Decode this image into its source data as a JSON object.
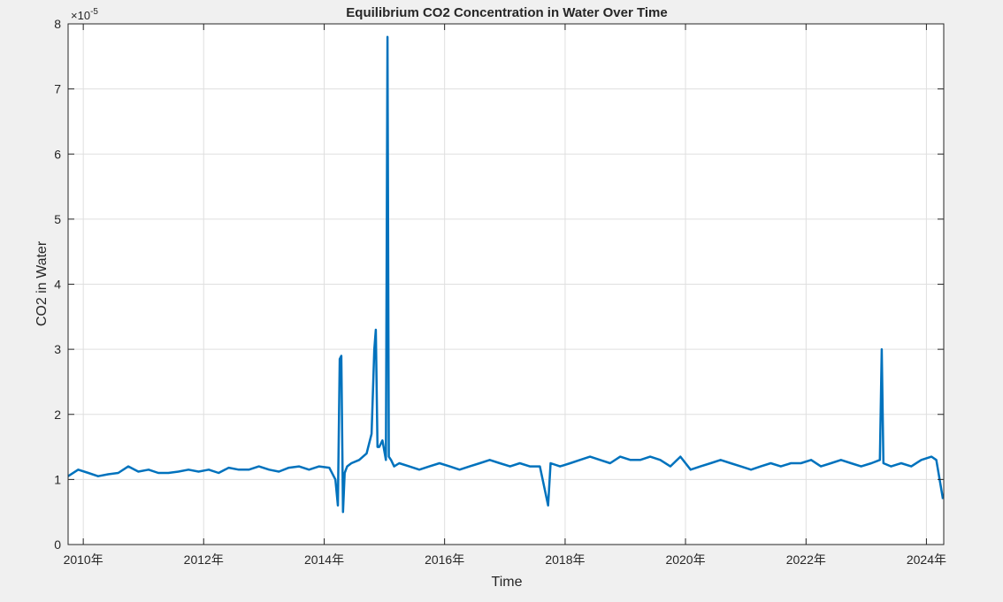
{
  "figure": {
    "background": "#f0f0f0"
  },
  "chart_data": {
    "type": "line",
    "title": "Equilibrium CO2 Concentration in Water Over Time",
    "xlabel": "Time",
    "ylabel": "CO2 in Water",
    "exponent_base": "×10",
    "exponent_power": "-5",
    "grid": true,
    "legend": "none",
    "line_color": "#0072BD",
    "xlim": [
      "2009-10-01",
      "2024-04-15"
    ],
    "ylim": [
      0,
      8
    ],
    "xtick_labels": [
      "2010年",
      "2012年",
      "2014年",
      "2016年",
      "2018年",
      "2020年",
      "2022年",
      "2024年"
    ],
    "xtick_dates": [
      "2010-01-01",
      "2012-01-01",
      "2014-01-01",
      "2016-01-01",
      "2018-01-01",
      "2020-01-01",
      "2022-01-01",
      "2024-01-01"
    ],
    "ytick_labels": [
      "0",
      "1",
      "2",
      "3",
      "4",
      "5",
      "6",
      "7",
      "8"
    ],
    "ytick_values": [
      0,
      1,
      2,
      3,
      4,
      5,
      6,
      7,
      8
    ],
    "series": [
      {
        "x": [
          "2009-10-01",
          "2009-12-01",
          "2010-02-01",
          "2010-04-01",
          "2010-06-01",
          "2010-08-01",
          "2010-10-01",
          "2010-12-01",
          "2011-02-01",
          "2011-04-01",
          "2011-06-01",
          "2011-08-01",
          "2011-10-01",
          "2011-12-01",
          "2012-02-01",
          "2012-04-01",
          "2012-06-01",
          "2012-08-01",
          "2012-10-01",
          "2012-12-01",
          "2013-02-01",
          "2013-04-01",
          "2013-06-01",
          "2013-08-01",
          "2013-10-01",
          "2013-12-01",
          "2014-02-01",
          "2014-03-10",
          "2014-03-25",
          "2014-04-05",
          "2014-04-15",
          "2014-04-25",
          "2014-05-05",
          "2014-05-20",
          "2014-06-15",
          "2014-08-01",
          "2014-09-15",
          "2014-10-15",
          "2014-11-01",
          "2014-11-10",
          "2014-11-20",
          "2014-12-01",
          "2014-12-20",
          "2015-01-10",
          "2015-01-20",
          "2015-01-28",
          "2015-02-10",
          "2015-03-01",
          "2015-04-01",
          "2015-06-01",
          "2015-08-01",
          "2015-10-01",
          "2015-12-01",
          "2016-02-01",
          "2016-04-01",
          "2016-06-01",
          "2016-08-01",
          "2016-10-01",
          "2016-12-01",
          "2017-02-01",
          "2017-04-01",
          "2017-06-01",
          "2017-08-01",
          "2017-09-20",
          "2017-10-05",
          "2017-12-01",
          "2018-02-01",
          "2018-04-01",
          "2018-06-01",
          "2018-08-01",
          "2018-10-01",
          "2018-12-01",
          "2019-02-01",
          "2019-04-01",
          "2019-06-01",
          "2019-08-01",
          "2019-10-01",
          "2019-12-01",
          "2020-02-01",
          "2020-04-01",
          "2020-06-01",
          "2020-08-01",
          "2020-10-01",
          "2020-12-01",
          "2021-02-01",
          "2021-04-01",
          "2021-06-01",
          "2021-08-01",
          "2021-10-01",
          "2021-12-01",
          "2022-02-01",
          "2022-04-01",
          "2022-06-01",
          "2022-08-01",
          "2022-10-01",
          "2022-12-01",
          "2023-02-01",
          "2023-03-25",
          "2023-04-05",
          "2023-04-15",
          "2023-06-01",
          "2023-08-01",
          "2023-10-01",
          "2023-12-01",
          "2024-02-01",
          "2024-03-01",
          "2024-04-10"
        ],
        "y": [
          1.05,
          1.15,
          1.1,
          1.05,
          1.08,
          1.1,
          1.2,
          1.12,
          1.15,
          1.1,
          1.1,
          1.12,
          1.15,
          1.12,
          1.15,
          1.1,
          1.18,
          1.15,
          1.15,
          1.2,
          1.15,
          1.12,
          1.18,
          1.2,
          1.15,
          1.2,
          1.18,
          1.0,
          0.6,
          2.85,
          2.9,
          0.5,
          1.1,
          1.2,
          1.25,
          1.3,
          1.4,
          1.7,
          3.0,
          3.3,
          1.5,
          1.5,
          1.6,
          1.3,
          7.8,
          1.35,
          1.3,
          1.2,
          1.25,
          1.2,
          1.15,
          1.2,
          1.25,
          1.2,
          1.15,
          1.2,
          1.25,
          1.3,
          1.25,
          1.2,
          1.25,
          1.2,
          1.2,
          0.6,
          1.25,
          1.2,
          1.25,
          1.3,
          1.35,
          1.3,
          1.25,
          1.35,
          1.3,
          1.3,
          1.35,
          1.3,
          1.2,
          1.35,
          1.15,
          1.2,
          1.25,
          1.3,
          1.25,
          1.2,
          1.15,
          1.2,
          1.25,
          1.2,
          1.25,
          1.25,
          1.3,
          1.2,
          1.25,
          1.3,
          1.25,
          1.2,
          1.25,
          1.3,
          3.0,
          1.25,
          1.2,
          1.25,
          1.2,
          1.3,
          1.35,
          1.3,
          0.7
        ]
      }
    ]
  }
}
